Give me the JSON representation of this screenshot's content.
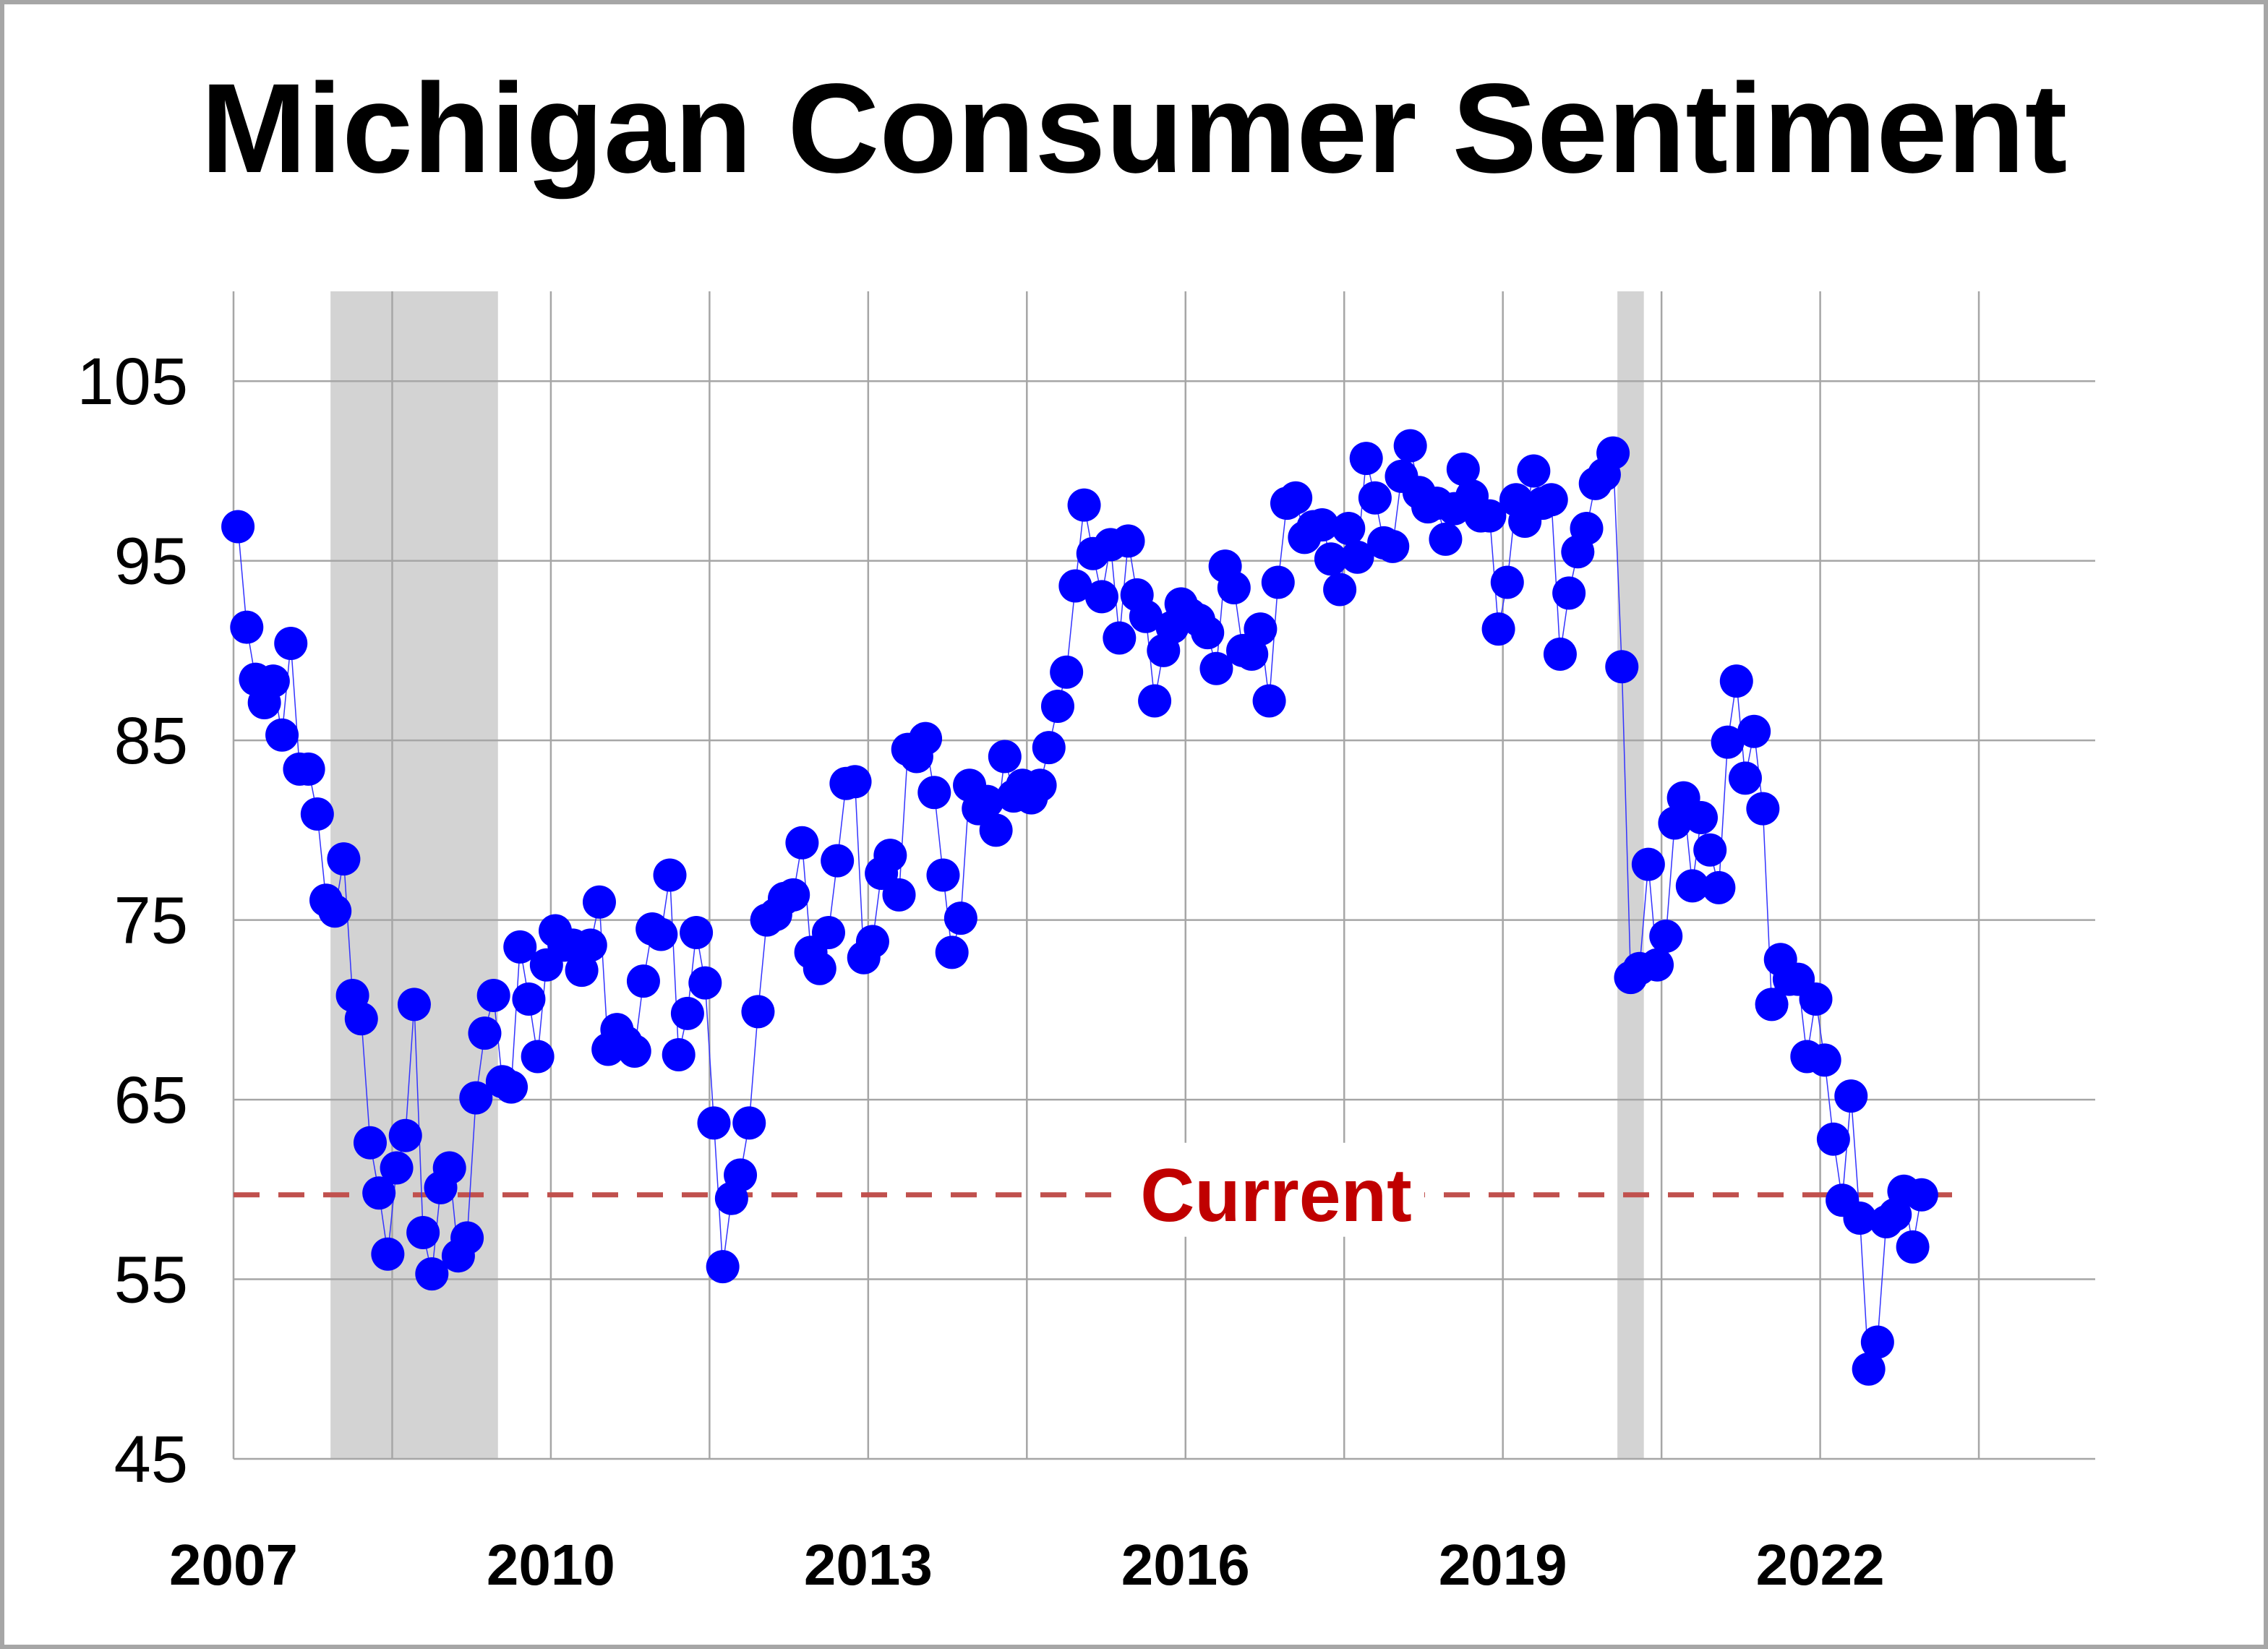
{
  "chart_data": {
    "type": "scatter",
    "title": "Michigan Consumer Sentiment",
    "xlabel": "",
    "ylabel": "",
    "xlim": [
      2007.0,
      2024.6
    ],
    "ylim": [
      45,
      110
    ],
    "x_ticks": [
      "2007",
      "2010",
      "2013",
      "2016",
      "2019",
      "2022"
    ],
    "y_ticks": [
      "45",
      "55",
      "65",
      "75",
      "85",
      "95",
      "105"
    ],
    "grid": true,
    "marker_color": "#0000ff",
    "line_color": "#3333ff",
    "recession_color": "#d3d3d3",
    "recessions": [
      [
        2007.917,
        2009.5
      ],
      [
        2020.083,
        2020.333
      ]
    ],
    "reference_line": {
      "label": "Current",
      "value": 59.7,
      "color": "#c0504d",
      "label_color": "#c00000"
    },
    "series": [
      {
        "start_year": 2007,
        "frequency": "monthly",
        "values": [
          96.9,
          91.3,
          88.4,
          87.1,
          88.3,
          85.3,
          90.4,
          83.4,
          83.4,
          80.9,
          76.1,
          75.5,
          78.4,
          70.8,
          69.5,
          62.6,
          59.8,
          56.4,
          61.2,
          63.0,
          70.3,
          57.6,
          55.3,
          60.1,
          61.2,
          56.3,
          57.3,
          65.1,
          68.7,
          70.8,
          66.0,
          65.7,
          73.5,
          70.6,
          67.4,
          72.5,
          74.4,
          73.6,
          73.6,
          72.2,
          73.6,
          76.0,
          67.8,
          68.9,
          68.2,
          67.7,
          71.6,
          74.5,
          74.2,
          77.5,
          67.5,
          69.8,
          74.3,
          71.5,
          63.7,
          55.7,
          59.5,
          60.8,
          63.7,
          69.9,
          75.0,
          75.3,
          76.2,
          76.4,
          79.3,
          73.2,
          72.3,
          74.3,
          78.3,
          82.6,
          82.7,
          72.9,
          73.8,
          77.6,
          78.6,
          76.4,
          84.5,
          84.1,
          85.1,
          82.1,
          77.5,
          73.2,
          75.1,
          82.5,
          81.2,
          81.6,
          80.0,
          84.1,
          81.9,
          82.5,
          81.8,
          82.5,
          84.6,
          86.9,
          88.8,
          93.6,
          98.1,
          95.4,
          93.0,
          95.9,
          90.7,
          96.1,
          93.1,
          91.9,
          87.2,
          90.0,
          91.3,
          92.6,
          92.0,
          91.7,
          91.0,
          89.0,
          94.7,
          93.5,
          90.0,
          89.8,
          91.2,
          87.2,
          93.8,
          98.2,
          98.5,
          96.3,
          96.9,
          97.0,
          95.1,
          93.4,
          96.8,
          95.2,
          100.7,
          98.5,
          96.0,
          95.8,
          99.7,
          101.4,
          98.8,
          98.0,
          98.2,
          96.2,
          97.9,
          100.1,
          98.6,
          97.5,
          97.5,
          91.2,
          93.8,
          98.4,
          97.2,
          100.0,
          98.2,
          98.4,
          89.8,
          93.2,
          95.5,
          96.8,
          99.3,
          99.8,
          101.0,
          89.1,
          71.8,
          72.3,
          78.1,
          72.5,
          74.1,
          80.4,
          81.8,
          76.9,
          80.7,
          78.9,
          76.8,
          84.9,
          88.3,
          82.9,
          85.5,
          81.2,
          70.3,
          72.8,
          71.7,
          71.7,
          67.4,
          70.6,
          67.2,
          62.8,
          59.4,
          65.2,
          58.4,
          50.0,
          51.5,
          58.2,
          58.6,
          59.9,
          56.8,
          59.7
        ]
      }
    ]
  },
  "labels": {
    "title": "Michigan Consumer Sentiment",
    "current": "Current"
  }
}
